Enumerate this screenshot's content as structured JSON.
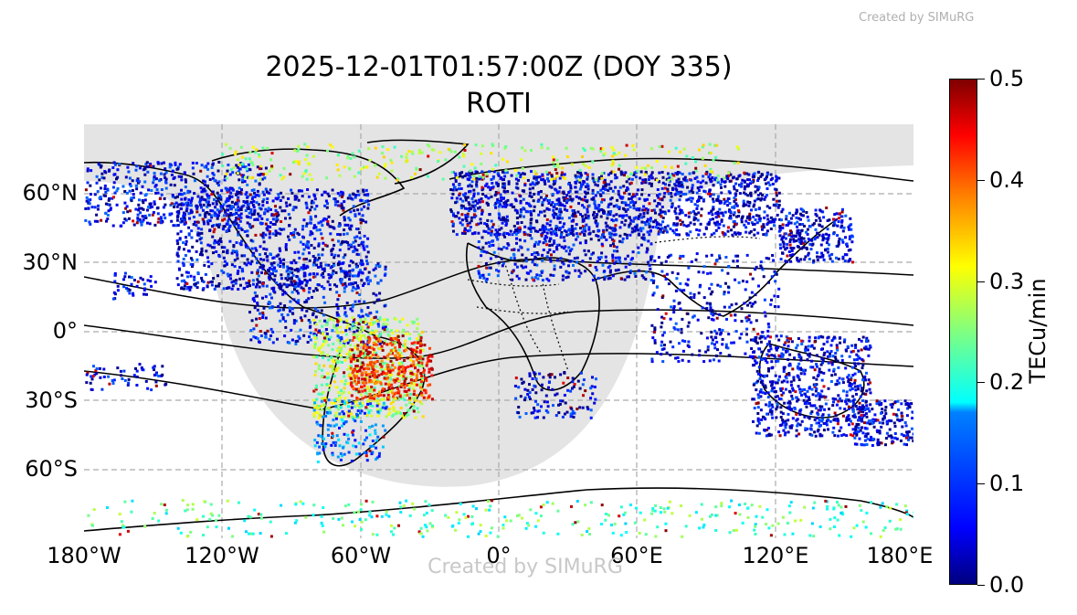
{
  "watermark_top": "Created by SIMuRG",
  "watermark_bottom": "Created by SIMuRG",
  "title_line1": "2025-12-01T01:57:00Z (DOY 335)",
  "title_line2": "ROTI",
  "map": {
    "projection": "PlateCarree",
    "lon_range": [
      -180,
      180
    ],
    "lat_range": [
      -90,
      90
    ],
    "grid": true,
    "x_ticks": [
      "180°W",
      "120°W",
      "60°W",
      "0°",
      "60°E",
      "120°E",
      "180°E"
    ],
    "y_ticks": [
      "60°N",
      "30°N",
      "0°",
      "30°S",
      "60°S"
    ],
    "night_shading_color": "#e4e4e4",
    "coastline_color": "#000000",
    "features": [
      "night-terminator-shading",
      "coastlines",
      "country-borders",
      "magnetic-latitude-lines"
    ]
  },
  "colorbar": {
    "label": "TECu/min",
    "ticks": [
      "0.0",
      "0.1",
      "0.2",
      "0.3",
      "0.4",
      "0.5"
    ],
    "range": [
      0.0,
      0.5
    ],
    "colormap": "jet"
  }
}
